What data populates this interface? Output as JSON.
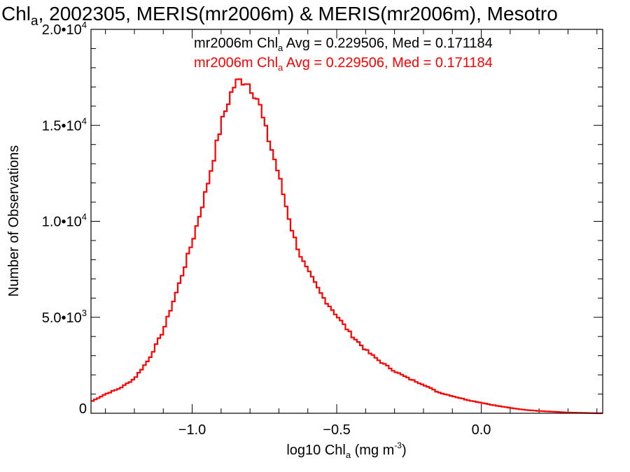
{
  "colors": {
    "background": "#ffffff",
    "axes": "#000000",
    "series1": "#000000",
    "series2": "#ff0000"
  },
  "chart_data": {
    "type": "histogram",
    "title": {
      "parts": [
        "Chl",
        "a",
        ", 2002305, MERIS(mr2006m) & MERIS(mr2006m), Mesotro"
      ]
    },
    "xlabel": {
      "before": "log10 Chl",
      "sub": "a",
      "mid": " (mg m",
      "sup": "-3",
      "after": ")"
    },
    "ylabel": "Number of Observations",
    "xlim": [
      -1.35,
      0.42
    ],
    "ylim": [
      0,
      20000
    ],
    "x_ticks": [
      {
        "value": -1.0,
        "label": "−1.0"
      },
      {
        "value": -0.5,
        "label": "−0.5"
      },
      {
        "value": 0.0,
        "label": "0.0"
      }
    ],
    "x_minor_step": 0.1,
    "y_ticks": [
      {
        "value": 0,
        "mantissa": "0",
        "exp": ""
      },
      {
        "value": 5000,
        "mantissa": "5.0•10",
        "exp": "3"
      },
      {
        "value": 10000,
        "mantissa": "1.0•10",
        "exp": "4"
      },
      {
        "value": 15000,
        "mantissa": "1.5•10",
        "exp": "4"
      },
      {
        "value": 20000,
        "mantissa": "2.0•10",
        "exp": "4"
      }
    ],
    "y_minor_step": 1000,
    "annotations": [
      {
        "pre": "mr2006m Chl",
        "sub": "a",
        "post": " Avg = 0.229506, Med = 0.171184",
        "color": "#000000"
      },
      {
        "pre": "mr2006m Chl",
        "sub": "a",
        "post": " Avg = 0.229506, Med = 0.171184",
        "color": "#ff0000"
      }
    ],
    "series": [
      {
        "color": "#ff0000",
        "bin_width": 0.01,
        "x": [
          -1.35,
          -1.3,
          -1.25,
          -1.2,
          -1.15,
          -1.1,
          -1.05,
          -1.0,
          -0.95,
          -0.9,
          -0.87,
          -0.85,
          -0.83,
          -0.81,
          -0.79,
          -0.77,
          -0.75,
          -0.72,
          -0.7,
          -0.68,
          -0.65,
          -0.62,
          -0.6,
          -0.55,
          -0.5,
          -0.45,
          -0.4,
          -0.35,
          -0.3,
          -0.25,
          -0.2,
          -0.15,
          -0.1,
          -0.05,
          0.0,
          0.05,
          0.1,
          0.15,
          0.2,
          0.25,
          0.3,
          0.35,
          0.4,
          0.42
        ],
        "y": [
          600,
          1000,
          1300,
          1800,
          2800,
          4300,
          6500,
          8900,
          11700,
          15000,
          16500,
          17200,
          17350,
          17300,
          16800,
          16300,
          15000,
          13500,
          12400,
          11100,
          9300,
          8000,
          7400,
          6100,
          5100,
          4100,
          3300,
          2700,
          2200,
          1800,
          1500,
          1100,
          900,
          700,
          550,
          400,
          280,
          180,
          120,
          80,
          40,
          20,
          0,
          0
        ]
      }
    ]
  }
}
